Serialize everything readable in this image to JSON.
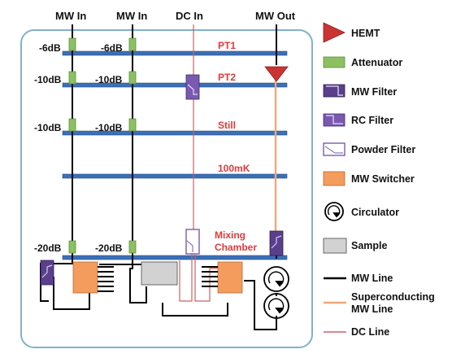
{
  "colors": {
    "frame": "#7fb2cc",
    "plate": "#3b6fb6",
    "plate_edge": "#27508c",
    "mw_line": "#000000",
    "sc_line": "#f0a878",
    "dc_line": "#c86464",
    "hemt": "#cc3333",
    "attenuator": "#8cc063",
    "mw_filter": "#5a3f8c",
    "rc_filter": "#7a5ab0",
    "powder_filter_border": "#7a5ab0",
    "switcher": "#f39c5e",
    "sample": "#d2d2d2",
    "stage_text": "#e23a3a"
  },
  "headers": {
    "mw_in_1": "MW In",
    "mw_in_2": "MW In",
    "dc_in": "DC In",
    "mw_out": "MW Out"
  },
  "attenuations": {
    "pt1_a": "-6dB",
    "pt1_b": "-6dB",
    "pt2_a": "-10dB",
    "pt2_b": "-10dB",
    "still_a": "-10dB",
    "still_b": "-10dB",
    "mc_a": "-20dB",
    "mc_b": "-20dB"
  },
  "stages": {
    "pt1": "PT1",
    "pt2": "PT2",
    "still": "Still",
    "mk100": "100mK",
    "mixing_1": "Mixing",
    "mixing_2": "Chamber"
  },
  "legend": {
    "hemt": "HEMT",
    "attenuator": "Attenuator",
    "mw_filter": "MW Filter",
    "rc_filter": "RC Filter",
    "powder_filter": "Powder Filter",
    "mw_switcher": "MW Switcher",
    "circulator": "Circulator",
    "sample": "Sample",
    "mw_line": "MW Line",
    "sc_line_1": "Superconducting",
    "sc_line_2": "MW Line",
    "dc_line": "DC Line"
  }
}
